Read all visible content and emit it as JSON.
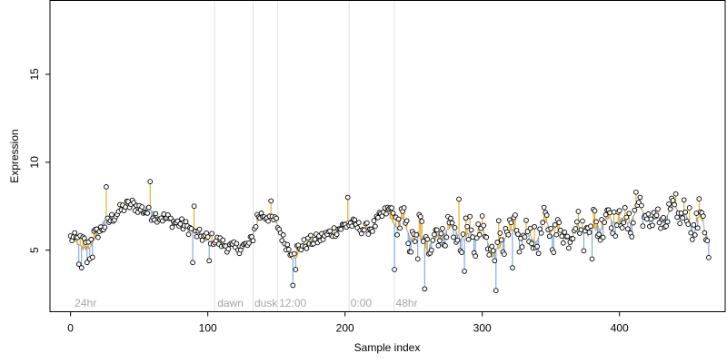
{
  "chart_data": {
    "type": "scatter",
    "title": "",
    "xlabel": "Sample index",
    "ylabel": "Expression",
    "xlim": [
      -15,
      477
    ],
    "ylim": [
      1.5,
      19.2
    ],
    "x_ticks": [
      0,
      100,
      200,
      300,
      400
    ],
    "y_ticks": [
      5,
      10,
      15
    ],
    "grid": false,
    "legend": "none",
    "colors": {
      "point_fill": "#ffffff",
      "point_stroke": "#000000",
      "segment_up": "#e69f00",
      "segment_down": "#6f9bd8",
      "trend_line": "#a9a9a9",
      "divider": "#e2e2e2",
      "region_label": "#a6a6a6"
    },
    "region_dividers": [
      105,
      133,
      151,
      203,
      236
    ],
    "region_labels": [
      {
        "x": 3,
        "text": "24hr"
      },
      {
        "x": 107,
        "text": "dawn"
      },
      {
        "x": 134,
        "text": "dusk"
      },
      {
        "x": 152,
        "text": "12:00"
      },
      {
        "x": 204,
        "text": "0:00"
      },
      {
        "x": 237,
        "text": "48hr"
      }
    ],
    "series_description": "Expression per sample (~465 samples); each point drawn as an open circle with a vertical segment to a smoothed trend (orange above, blue below).",
    "anchors": [
      [
        0,
        5.7
      ],
      [
        5,
        5.6
      ],
      [
        10,
        5.5
      ],
      [
        15,
        5.8
      ],
      [
        20,
        6.0
      ],
      [
        25,
        6.4
      ],
      [
        30,
        6.8
      ],
      [
        35,
        7.2
      ],
      [
        40,
        7.5
      ],
      [
        45,
        7.6
      ],
      [
        50,
        7.4
      ],
      [
        55,
        7.2
      ],
      [
        60,
        7.0
      ],
      [
        65,
        6.9
      ],
      [
        70,
        6.8
      ],
      [
        75,
        6.6
      ],
      [
        80,
        6.5
      ],
      [
        85,
        6.3
      ],
      [
        90,
        6.0
      ],
      [
        95,
        5.8
      ],
      [
        100,
        5.7
      ],
      [
        105,
        5.6
      ],
      [
        110,
        5.4
      ],
      [
        115,
        5.2
      ],
      [
        120,
        5.1
      ],
      [
        125,
        5.2
      ],
      [
        130,
        5.3
      ],
      [
        133,
        5.8
      ],
      [
        136,
        6.9
      ],
      [
        140,
        7.0
      ],
      [
        145,
        6.9
      ],
      [
        150,
        6.6
      ],
      [
        155,
        5.6
      ],
      [
        160,
        5.0
      ],
      [
        165,
        5.1
      ],
      [
        170,
        5.3
      ],
      [
        175,
        5.5
      ],
      [
        180,
        5.6
      ],
      [
        185,
        5.8
      ],
      [
        190,
        6.0
      ],
      [
        195,
        6.2
      ],
      [
        200,
        6.4
      ],
      [
        205,
        6.5
      ],
      [
        210,
        6.3
      ],
      [
        215,
        6.2
      ],
      [
        220,
        6.3
      ],
      [
        225,
        6.8
      ],
      [
        230,
        7.2
      ],
      [
        235,
        7.4
      ],
      [
        240,
        6.6
      ],
      [
        245,
        6.0
      ],
      [
        250,
        5.8
      ],
      [
        255,
        6.1
      ],
      [
        260,
        5.7
      ],
      [
        265,
        5.6
      ],
      [
        270,
        6.1
      ],
      [
        275,
        6.2
      ],
      [
        280,
        5.9
      ],
      [
        285,
        5.6
      ],
      [
        290,
        6.1
      ],
      [
        295,
        5.6
      ],
      [
        300,
        5.9
      ],
      [
        305,
        5.2
      ],
      [
        310,
        5.5
      ],
      [
        315,
        5.8
      ],
      [
        320,
        6.0
      ],
      [
        325,
        5.7
      ],
      [
        330,
        5.9
      ],
      [
        335,
        5.6
      ],
      [
        340,
        5.8
      ],
      [
        345,
        6.1
      ],
      [
        350,
        6.3
      ],
      [
        355,
        6.0
      ],
      [
        360,
        5.9
      ],
      [
        365,
        6.2
      ],
      [
        370,
        6.5
      ],
      [
        375,
        6.2
      ],
      [
        380,
        6.6
      ],
      [
        385,
        6.4
      ],
      [
        390,
        6.9
      ],
      [
        395,
        7.0
      ],
      [
        400,
        6.7
      ],
      [
        405,
        6.4
      ],
      [
        410,
        7.1
      ],
      [
        415,
        7.3
      ],
      [
        420,
        6.9
      ],
      [
        425,
        6.6
      ],
      [
        430,
        6.8
      ],
      [
        435,
        6.5
      ],
      [
        440,
        7.1
      ],
      [
        445,
        7.3
      ],
      [
        450,
        6.8
      ],
      [
        455,
        6.6
      ],
      [
        460,
        7.0
      ],
      [
        465,
        5.1
      ]
    ],
    "outliers": [
      [
        6,
        4.2
      ],
      [
        8,
        4.0
      ],
      [
        12,
        4.3
      ],
      [
        14,
        4.5
      ],
      [
        16,
        4.6
      ],
      [
        26,
        8.6
      ],
      [
        58,
        8.9
      ],
      [
        89,
        4.3
      ],
      [
        90,
        7.5
      ],
      [
        101,
        4.4
      ],
      [
        146,
        7.8
      ],
      [
        162,
        3.0
      ],
      [
        164,
        3.9
      ],
      [
        202,
        8.0
      ],
      [
        236,
        3.9
      ],
      [
        253,
        4.5
      ],
      [
        258,
        2.8
      ],
      [
        283,
        7.9
      ],
      [
        287,
        3.8
      ],
      [
        310,
        2.7
      ],
      [
        309,
        4.4
      ],
      [
        322,
        4.0
      ],
      [
        380,
        4.5
      ],
      [
        412,
        8.3
      ],
      [
        441,
        8.2
      ]
    ]
  }
}
